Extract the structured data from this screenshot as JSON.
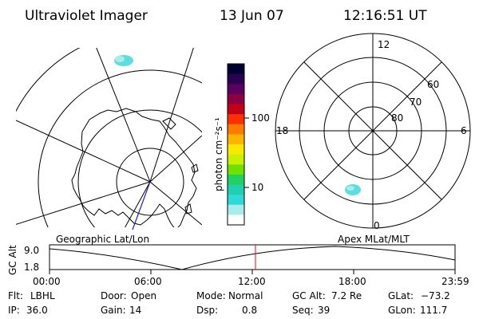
{
  "header": {
    "title": "Ultraviolet Imager",
    "date": "13 Jun 07",
    "time": "12:16:51 UT"
  },
  "left_map": {
    "label": "Geographic Lat/Lon"
  },
  "right_map": {
    "label": "Apex MLat/MLT",
    "mlt_labels": [
      "12",
      "18",
      "6",
      "0"
    ],
    "lat_labels": [
      "60",
      "70",
      "80"
    ]
  },
  "colorbar": {
    "unit": "photon cm⁻²s⁻¹",
    "ticks": [
      "100",
      "10"
    ],
    "colors": [
      "#000033",
      "#2a0050",
      "#5a0060",
      "#8a0040",
      "#c40018",
      "#ff3000",
      "#ff7a00",
      "#ffb400",
      "#f5ea00",
      "#c8f000",
      "#70e000",
      "#20d060",
      "#20d0b0",
      "#30d8d8",
      "#a8ecec",
      "#ffffff"
    ]
  },
  "timeline": {
    "ylabel": "GC Alt",
    "y_ticks": [
      "9.0",
      "1.8"
    ],
    "x_ticks": [
      "00:00",
      "06:00",
      "12:00",
      "18:00",
      "23:59"
    ],
    "marker_time": "12:16:51",
    "marker_color": "#ff0000"
  },
  "status": {
    "row1": [
      {
        "label": "Flt:",
        "value": "LBHL"
      },
      {
        "label": "Door:",
        "value": "Open"
      },
      {
        "label": "Mode:",
        "value": "Normal"
      },
      {
        "label": "GC Alt:",
        "value": "7.2 Re"
      },
      {
        "label": "GLat:",
        "value": "−73.2"
      }
    ],
    "row2": [
      {
        "label": "IP:",
        "value": "36.0"
      },
      {
        "label": "Gain:",
        "value": "14"
      },
      {
        "label": "Dsp:",
        "value": "0.8"
      },
      {
        "label": "Seq:",
        "value": "39"
      },
      {
        "label": "GLon:",
        "value": "111.7"
      }
    ]
  }
}
